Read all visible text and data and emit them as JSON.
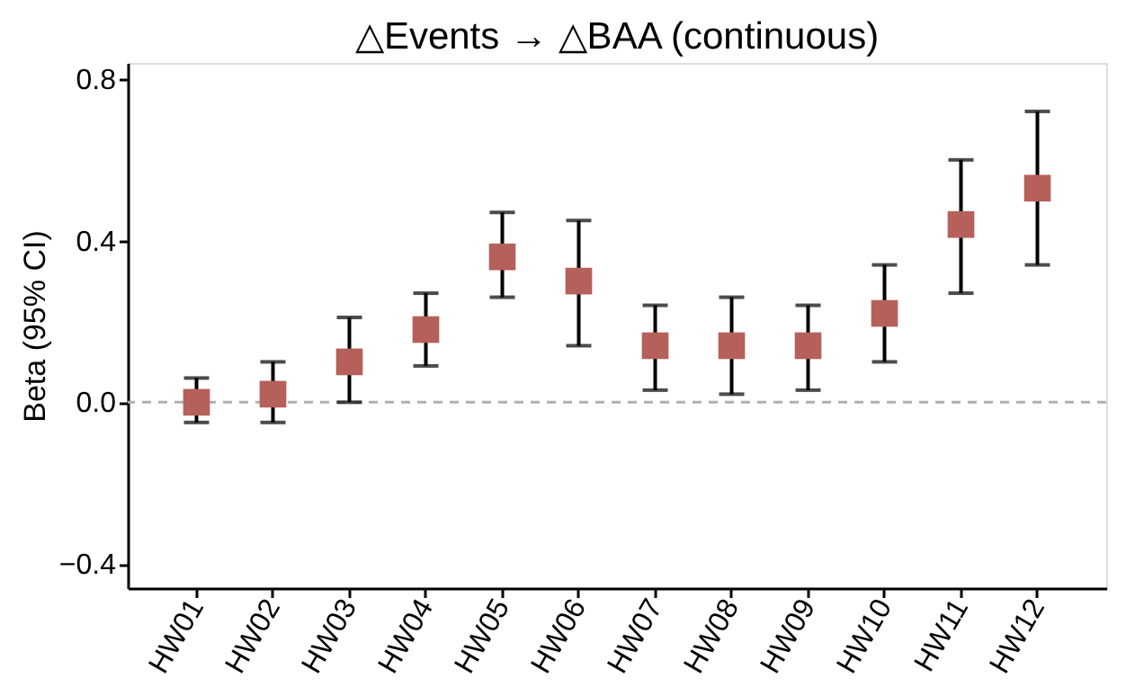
{
  "chart_data": {
    "type": "scatter",
    "title": "△Events → △BAA (continuous)",
    "ylabel": "Beta (95% CI)",
    "categories": [
      "HW01",
      "HW02",
      "HW03",
      "HW04",
      "HW05",
      "HW06",
      "HW07",
      "HW08",
      "HW09",
      "HW10",
      "HW11",
      "HW12"
    ],
    "series": [
      {
        "color": "#b5605a",
        "values": [
          0.0,
          0.02,
          0.1,
          0.18,
          0.36,
          0.3,
          0.14,
          0.14,
          0.14,
          0.22,
          0.44,
          0.53
        ],
        "errors": [
          [
            -0.05,
            0.06
          ],
          [
            -0.05,
            0.1
          ],
          [
            0.0,
            0.21
          ],
          [
            0.09,
            0.27
          ],
          [
            0.26,
            0.47
          ],
          [
            0.14,
            0.45
          ],
          [
            0.03,
            0.24
          ],
          [
            0.02,
            0.26
          ],
          [
            0.03,
            0.24
          ],
          [
            0.1,
            0.34
          ],
          [
            0.27,
            0.6
          ],
          [
            0.34,
            0.72
          ]
        ]
      }
    ],
    "ylim": [
      -0.46,
      0.84
    ],
    "yticks": [
      {
        "value": -0.4,
        "label": "−0.4"
      },
      {
        "value": 0.0,
        "label": "0.0"
      },
      {
        "value": 0.4,
        "label": "0.4"
      },
      {
        "value": 0.8,
        "label": "0.8"
      }
    ],
    "ref_lines": [
      {
        "axis": "y",
        "value": 0,
        "color": "#b0b0b0",
        "line_style": "dashed"
      }
    ],
    "marker": "square",
    "grid": false
  }
}
